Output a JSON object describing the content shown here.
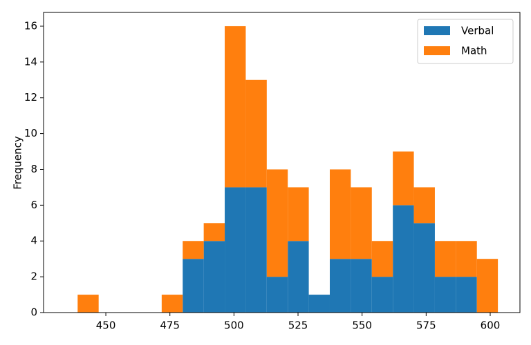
{
  "chart_data": {
    "type": "histogram",
    "stacked": true,
    "y_label": "Frequency",
    "bins": [
      439,
      447.2,
      455.4,
      463.6,
      471.8,
      480,
      488.2,
      496.4,
      504.6,
      512.8,
      521,
      529.2,
      537.4,
      545.6,
      553.8,
      562,
      570.2,
      578.4,
      586.6,
      594.8,
      603
    ],
    "series": [
      {
        "name": "Verbal",
        "color": "#1f77b4",
        "values": [
          0,
          0,
          0,
          0,
          0,
          3,
          4,
          7,
          7,
          2,
          4,
          1,
          3,
          3,
          2,
          6,
          5,
          2,
          2,
          0
        ]
      },
      {
        "name": "Math",
        "color": "#ff7f0e",
        "values": [
          1,
          0,
          0,
          0,
          1,
          1,
          1,
          9,
          6,
          6,
          3,
          0,
          5,
          4,
          2,
          3,
          2,
          2,
          2,
          3
        ]
      }
    ],
    "xlim": [
      425.7,
      611.6
    ],
    "xticks": [
      450,
      475,
      500,
      525,
      550,
      575,
      600
    ],
    "ylim": [
      0,
      16.77
    ],
    "yticks": [
      0,
      2,
      4,
      6,
      8,
      10,
      12,
      14,
      16
    ],
    "legend": "upper right"
  }
}
